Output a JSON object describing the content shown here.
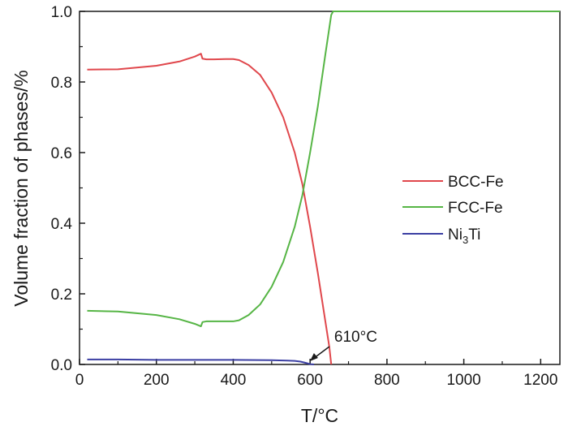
{
  "chart_data": {
    "type": "line",
    "title": "",
    "xlabel": "T/°C",
    "ylabel": "Volume fraction of phases/%",
    "xlim": [
      0,
      1250
    ],
    "ylim": [
      0,
      1.0
    ],
    "xticks": [
      "0",
      "200",
      "400",
      "600",
      "800",
      "1000",
      "1200"
    ],
    "yticks": [
      "0.0",
      "0.2",
      "0.4",
      "0.6",
      "0.8",
      "1.0"
    ],
    "grid": false,
    "legend_position": "right-middle",
    "series": [
      {
        "name": "BCC-Fe",
        "color": "#e0474c",
        "x": [
          20,
          100,
          200,
          260,
          300,
          316,
          320,
          330,
          350,
          380,
          400,
          415,
          440,
          470,
          500,
          530,
          560,
          580,
          600,
          620,
          640,
          650,
          655
        ],
        "y": [
          0.835,
          0.836,
          0.846,
          0.858,
          0.872,
          0.88,
          0.866,
          0.864,
          0.864,
          0.865,
          0.865,
          0.862,
          0.848,
          0.82,
          0.77,
          0.7,
          0.6,
          0.51,
          0.39,
          0.26,
          0.12,
          0.05,
          0.0
        ]
      },
      {
        "name": "FCC-Fe",
        "color": "#56b545",
        "x": [
          20,
          100,
          200,
          260,
          300,
          316,
          320,
          330,
          350,
          380,
          400,
          415,
          440,
          470,
          500,
          530,
          560,
          580,
          600,
          620,
          640,
          655,
          660,
          700,
          800,
          900,
          1000,
          1100,
          1200,
          1250
        ],
        "y": [
          0.152,
          0.15,
          0.14,
          0.128,
          0.115,
          0.108,
          0.12,
          0.122,
          0.122,
          0.122,
          0.122,
          0.125,
          0.14,
          0.17,
          0.22,
          0.29,
          0.39,
          0.48,
          0.6,
          0.73,
          0.88,
          0.99,
          1.0,
          1.0,
          1.0,
          1.0,
          1.0,
          1.0,
          1.0,
          1.0
        ]
      },
      {
        "name": "Ni₃Ti",
        "color": "#3b3fa3",
        "x": [
          20,
          100,
          200,
          300,
          400,
          500,
          540,
          560,
          575,
          590,
          600,
          610
        ],
        "y": [
          0.014,
          0.014,
          0.013,
          0.013,
          0.013,
          0.012,
          0.011,
          0.01,
          0.008,
          0.004,
          0.001,
          0.0
        ]
      }
    ],
    "legend": [
      {
        "label": "BCC-Fe",
        "color": "#e0474c"
      },
      {
        "label": "FCC-Fe",
        "color": "#56b545"
      },
      {
        "label": "Ni",
        "sub": "3",
        "tail": "Ti",
        "color": "#3b3fa3"
      }
    ],
    "annotations": [
      {
        "text": "610°C",
        "x": 610,
        "y": 0.0
      }
    ]
  }
}
